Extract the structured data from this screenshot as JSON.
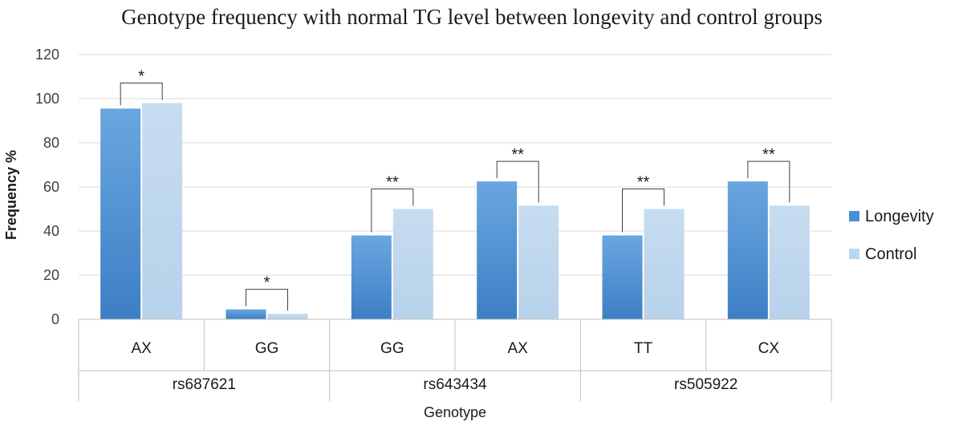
{
  "chart_data": {
    "type": "bar",
    "title": "Genotype frequency with normal TG level between longevity and control groups",
    "xlabel": "Genotype",
    "ylabel": "Frequency %",
    "ylim": [
      0,
      120
    ],
    "yticks": [
      0,
      20,
      40,
      60,
      80,
      100,
      120
    ],
    "grid": true,
    "legend_position": "right",
    "categories": [
      "AX",
      "GG",
      "GG",
      "AX",
      "TT",
      "CX"
    ],
    "groups": [
      {
        "label": "rs687621",
        "categories": [
          "AX",
          "GG"
        ]
      },
      {
        "label": "rs643434",
        "categories": [
          "GG",
          "AX"
        ]
      },
      {
        "label": "rs505922",
        "categories": [
          "TT",
          "CX"
        ]
      }
    ],
    "series": [
      {
        "name": "Longevity",
        "color": "#4a8fd4",
        "values": [
          95.5,
          4.5,
          38,
          62.5,
          38,
          62.5
        ]
      },
      {
        "name": "Control",
        "color": "#bdd7ee",
        "values": [
          98,
          2.5,
          50,
          51.5,
          50,
          51.5
        ]
      }
    ],
    "annotations": [
      "*",
      "*",
      "**",
      "**",
      "**",
      "**"
    ]
  }
}
